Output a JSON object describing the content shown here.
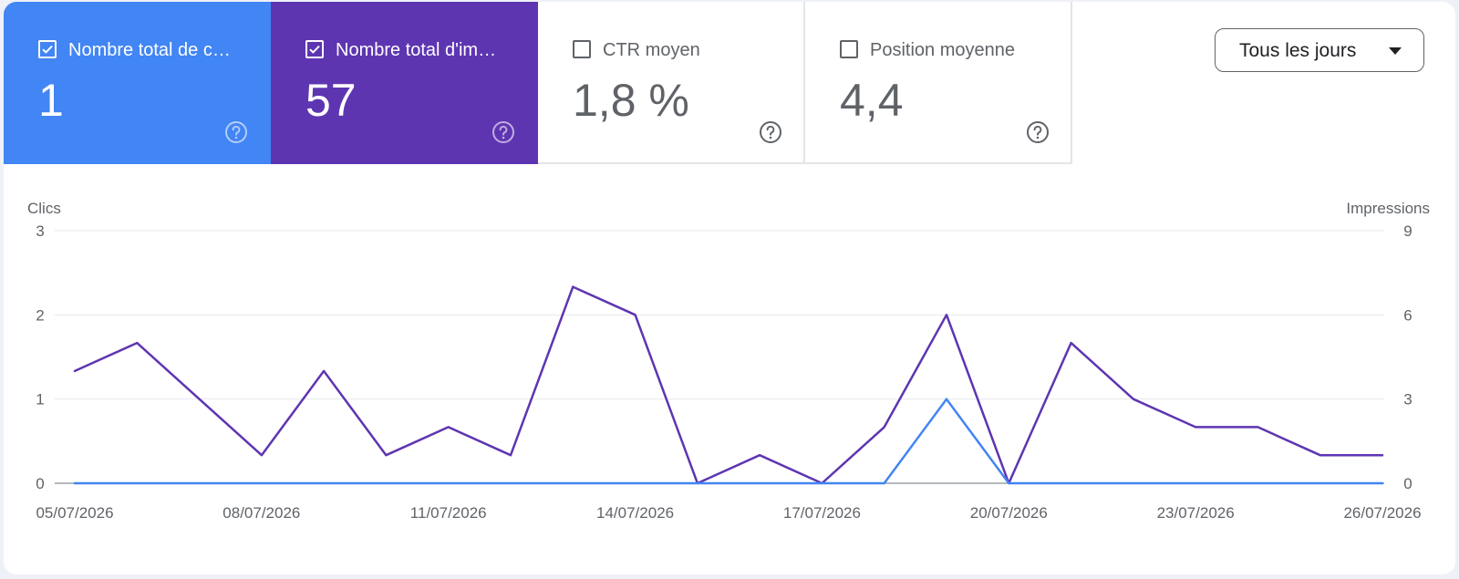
{
  "tiles": [
    {
      "label": "Nombre total de c…",
      "value": "1",
      "checked": true,
      "color": "#4285f4"
    },
    {
      "label": "Nombre total d'im…",
      "value": "57",
      "checked": true,
      "color": "#5e35b1"
    },
    {
      "label": "CTR moyen",
      "value": "1,8 %",
      "checked": false
    },
    {
      "label": "Position moyenne",
      "value": "4,4",
      "checked": false
    }
  ],
  "help_icon": "question-circle-icon",
  "dropdown": {
    "label": "Tous les jours",
    "icon": "caret-down-icon"
  },
  "chart_data": {
    "type": "line",
    "x": [
      "05/07/2026",
      "06/07/2026",
      "07/07/2026",
      "08/07/2026",
      "09/07/2026",
      "10/07/2026",
      "11/07/2026",
      "12/07/2026",
      "13/07/2026",
      "14/07/2026",
      "15/07/2026",
      "16/07/2026",
      "17/07/2026",
      "18/07/2026",
      "19/07/2026",
      "20/07/2026",
      "21/07/2026",
      "22/07/2026",
      "23/07/2026",
      "24/07/2026",
      "25/07/2026",
      "26/07/2026"
    ],
    "x_tick_labels": [
      "05/07/2026",
      "08/07/2026",
      "11/07/2026",
      "14/07/2026",
      "17/07/2026",
      "20/07/2026",
      "23/07/2026",
      "26/07/2026"
    ],
    "y_left": {
      "label": "Clics",
      "ticks": [
        0,
        1,
        2,
        3
      ],
      "lim": [
        0,
        3
      ]
    },
    "y_right": {
      "label": "Impressions",
      "ticks": [
        0,
        3,
        6,
        9
      ],
      "lim": [
        0,
        9
      ]
    },
    "grid": true,
    "series": [
      {
        "axis": "right",
        "color": "#5e35b1",
        "values": [
          4,
          5,
          3,
          1,
          4,
          1,
          2,
          1,
          7,
          6,
          0,
          1,
          0,
          2,
          6,
          0,
          5,
          3,
          2,
          2,
          1,
          1
        ]
      },
      {
        "axis": "left",
        "color": "#4285f4",
        "values": [
          0,
          0,
          0,
          0,
          0,
          0,
          0,
          0,
          0,
          0,
          0,
          0,
          0,
          0,
          1,
          0,
          0,
          0,
          0,
          0,
          0,
          0
        ]
      }
    ]
  }
}
